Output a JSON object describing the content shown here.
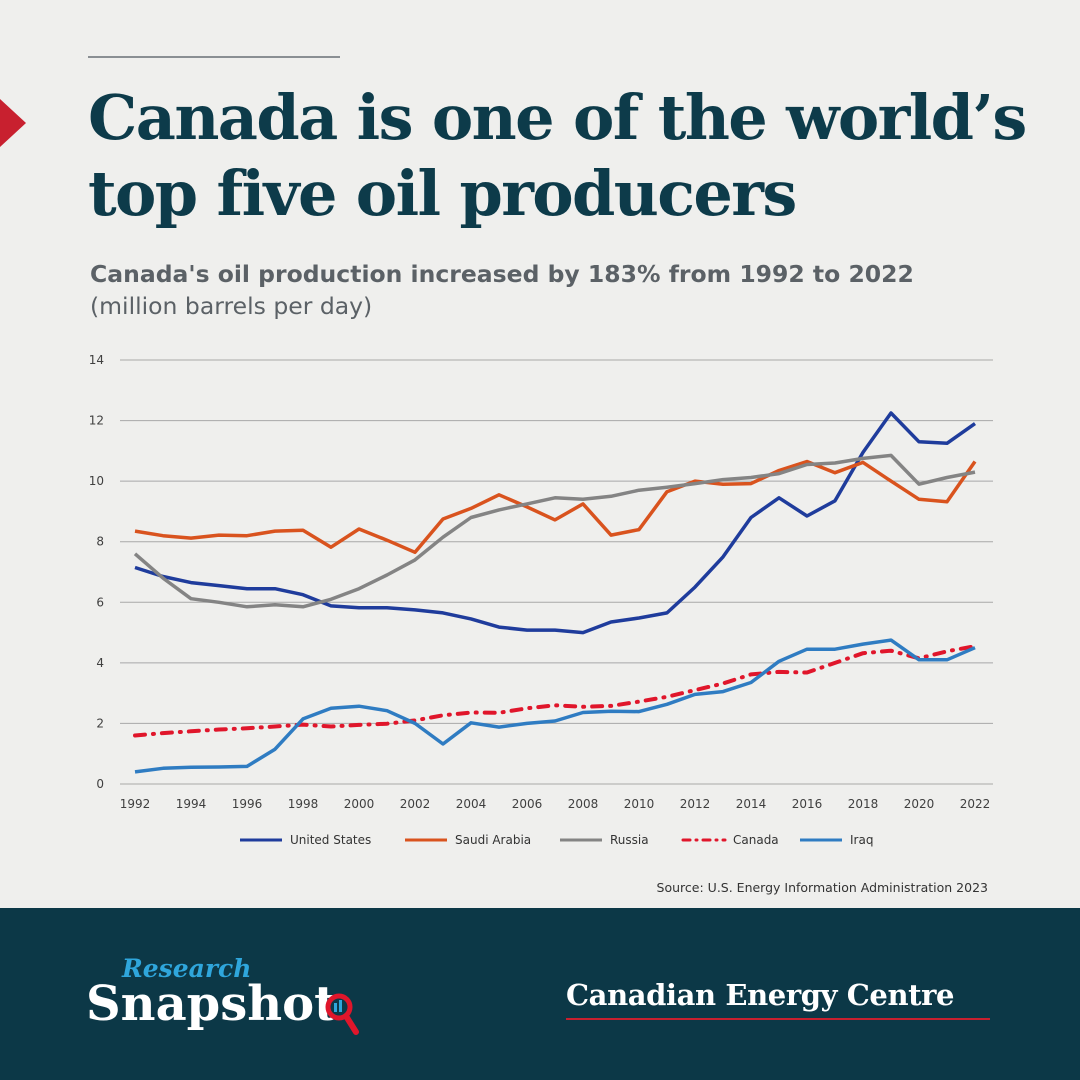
{
  "header": {
    "title": "Canada is one of the world’s top five oil producers",
    "subtitle": "Canada's oil production increased by 183% from 1992 to 2022",
    "unit_note": "(million barrels per day)"
  },
  "chart_data": {
    "type": "line",
    "title": "",
    "xlabel": "",
    "ylabel": "",
    "xlim": [
      1992,
      2022
    ],
    "ylim": [
      0,
      14
    ],
    "yticks": [
      0,
      2,
      4,
      6,
      8,
      10,
      12,
      14
    ],
    "xticks": [
      1992,
      1994,
      1996,
      1998,
      2000,
      2002,
      2004,
      2006,
      2008,
      2010,
      2012,
      2014,
      2016,
      2018,
      2020,
      2022
    ],
    "grid": "horizontal",
    "legend_position": "bottom",
    "x": [
      1992,
      1993,
      1994,
      1995,
      1996,
      1997,
      1998,
      1999,
      2000,
      2001,
      2002,
      2003,
      2004,
      2005,
      2006,
      2007,
      2008,
      2009,
      2010,
      2011,
      2012,
      2013,
      2014,
      2015,
      2016,
      2017,
      2018,
      2019,
      2020,
      2021,
      2022
    ],
    "series": [
      {
        "name": "United States",
        "color": "#1f3c9c",
        "style": "solid",
        "values": [
          7.15,
          6.85,
          6.65,
          6.55,
          6.45,
          6.45,
          6.25,
          5.88,
          5.82,
          5.82,
          5.75,
          5.65,
          5.45,
          5.18,
          5.08,
          5.08,
          5.0,
          5.35,
          5.48,
          5.65,
          6.5,
          7.5,
          8.8,
          9.45,
          8.85,
          9.35,
          10.95,
          12.25,
          11.3,
          11.25,
          11.9
        ]
      },
      {
        "name": "Saudi Arabia",
        "color": "#d9531e",
        "style": "solid",
        "values": [
          8.35,
          8.2,
          8.12,
          8.22,
          8.2,
          8.35,
          8.38,
          7.82,
          8.42,
          8.05,
          7.65,
          8.75,
          9.1,
          9.55,
          9.15,
          8.72,
          9.25,
          8.22,
          8.4,
          9.65,
          10.0,
          9.9,
          9.92,
          10.35,
          10.65,
          10.28,
          10.62,
          10.0,
          9.4,
          9.32,
          10.65
        ]
      },
      {
        "name": "Russia",
        "color": "#848484",
        "style": "solid",
        "values": [
          7.6,
          6.8,
          6.12,
          6.0,
          5.85,
          5.92,
          5.85,
          6.1,
          6.45,
          6.9,
          7.4,
          8.15,
          8.8,
          9.05,
          9.25,
          9.45,
          9.4,
          9.5,
          9.7,
          9.8,
          9.92,
          10.05,
          10.12,
          10.25,
          10.55,
          10.6,
          10.75,
          10.85,
          9.9,
          10.12,
          10.3
        ]
      },
      {
        "name": "Canada",
        "color": "#e0162b",
        "style": "dashdot",
        "values": [
          1.6,
          1.68,
          1.74,
          1.8,
          1.84,
          1.9,
          1.96,
          1.9,
          1.95,
          1.99,
          2.1,
          2.27,
          2.36,
          2.35,
          2.5,
          2.6,
          2.55,
          2.58,
          2.72,
          2.88,
          3.1,
          3.32,
          3.62,
          3.7,
          3.68,
          4.0,
          4.32,
          4.4,
          4.15,
          4.38,
          4.55
        ]
      },
      {
        "name": "Iraq",
        "color": "#2f7cc2",
        "style": "solid",
        "values": [
          0.4,
          0.52,
          0.55,
          0.56,
          0.58,
          1.15,
          2.15,
          2.5,
          2.57,
          2.42,
          2.0,
          1.32,
          2.02,
          1.88,
          2.0,
          2.08,
          2.36,
          2.4,
          2.39,
          2.63,
          2.96,
          3.05,
          3.35,
          4.05,
          4.45,
          4.45,
          4.62,
          4.75,
          4.1,
          4.1,
          4.5
        ]
      }
    ],
    "source": "Source: U.S. Energy Information Administration 2023"
  },
  "footer": {
    "brand_top": "Research",
    "brand_bottom": "Snapshot",
    "org_name": "Canadian Energy Centre",
    "background_color": "#0c3847",
    "accent_color": "#c8202f"
  }
}
